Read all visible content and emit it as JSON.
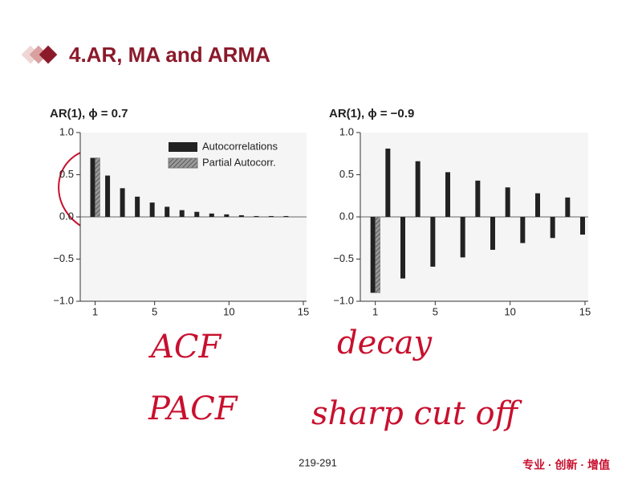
{
  "header": {
    "title": "4.AR, MA and ARMA"
  },
  "chart_data": [
    {
      "type": "bar",
      "title": "AR(1), ϕ = 0.7",
      "x": [
        1,
        2,
        3,
        4,
        5,
        6,
        7,
        8,
        9,
        10,
        11,
        12,
        13,
        14,
        15
      ],
      "series": [
        {
          "name": "Autocorrelations",
          "color": "#222222",
          "values": [
            0.7,
            0.49,
            0.34,
            0.24,
            0.17,
            0.12,
            0.08,
            0.06,
            0.04,
            0.03,
            0.02,
            0.01,
            0.01,
            0.01,
            0.0
          ]
        },
        {
          "name": "Partial Autocorr.",
          "color": "#777777",
          "values": [
            0.7,
            0,
            0,
            0,
            0,
            0,
            0,
            0,
            0,
            0,
            0,
            0,
            0,
            0,
            0
          ]
        }
      ],
      "xlim": [
        0,
        15
      ],
      "xticks": [
        1,
        5,
        10,
        15
      ],
      "ylim": [
        -1,
        1
      ],
      "yticks": [
        {
          "value": -1,
          "label": "−1.0"
        },
        {
          "value": -0.5,
          "label": "−0.5"
        },
        {
          "value": 0,
          "label": "0.0"
        },
        {
          "value": 0.5,
          "label": "0.5"
        },
        {
          "value": 1,
          "label": "1.0"
        }
      ],
      "legend": "upper right"
    },
    {
      "type": "bar",
      "title": "AR(1), ϕ = −0.9",
      "x": [
        1,
        2,
        3,
        4,
        5,
        6,
        7,
        8,
        9,
        10,
        11,
        12,
        13,
        14,
        15
      ],
      "series": [
        {
          "name": "Autocorrelations",
          "color": "#222222",
          "values": [
            -0.9,
            0.81,
            -0.73,
            0.66,
            -0.59,
            0.53,
            -0.48,
            0.43,
            -0.39,
            0.35,
            -0.31,
            0.28,
            -0.25,
            0.23,
            -0.21
          ]
        },
        {
          "name": "Partial Autocorr.",
          "color": "#777777",
          "values": [
            -0.9,
            0,
            0,
            0,
            0,
            0,
            0,
            0,
            0,
            0,
            0,
            0,
            0,
            0,
            0
          ]
        }
      ],
      "xlim": [
        0,
        15
      ],
      "xticks": [
        1,
        5,
        10,
        15
      ],
      "ylim": [
        -1,
        1
      ],
      "yticks": [
        {
          "value": -1,
          "label": "−1.0"
        },
        {
          "value": -0.5,
          "label": "−0.5"
        },
        {
          "value": 0,
          "label": "0.0"
        },
        {
          "value": 0.5,
          "label": "0.5"
        },
        {
          "value": 1,
          "label": "1.0"
        }
      ],
      "legend": false
    }
  ],
  "annotations": [
    "ACF",
    "decay",
    "PACF",
    "sharp cut off"
  ],
  "footer": {
    "page": "219-291",
    "slogan": "专业 · 创新 · 增值"
  }
}
